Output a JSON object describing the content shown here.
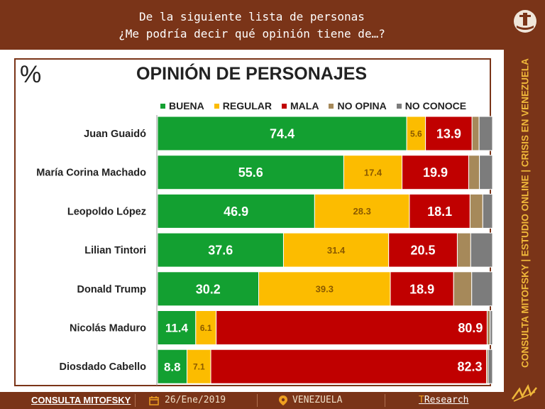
{
  "header": {
    "line1": "De la siguiente lista de personas",
    "line2": "¿Me podría decir qué opinión tiene de…?"
  },
  "sidebar": {
    "vertical_text": "CONSULTA MITOFSKY | ESTUDIO ONLINE | CRISIS EN VENEZUELA"
  },
  "footer": {
    "brand": "CONSULTA MITOFSKY",
    "date": "26/Ene/2019",
    "country": "VENEZUELA",
    "tresearch_t": "T",
    "tresearch_rest": "Research"
  },
  "colors": {
    "buena": "#13a031",
    "regular": "#fcbc00",
    "mala": "#c00000",
    "no_opina": "#a6895a",
    "no_conoce": "#7c7c7c",
    "brown": "#7a3418"
  },
  "chart_data": {
    "type": "bar",
    "orientation": "horizontal",
    "stacked": true,
    "title": "OPINIÓN DE PERSONAJES",
    "unit_label": "%",
    "xlim": [
      0,
      100
    ],
    "legend_position": "top",
    "categories": [
      "Juan Guaidó",
      "María Corina Machado",
      "Leopoldo López",
      "Lilian Tintori",
      "Donald Trump",
      "Nicolás Maduro",
      "Diosdado Cabello"
    ],
    "series": [
      {
        "name": "BUENA",
        "values": [
          74.4,
          55.6,
          46.9,
          37.6,
          30.2,
          11.4,
          8.8
        ]
      },
      {
        "name": "REGULAR",
        "values": [
          5.6,
          17.4,
          28.3,
          31.4,
          39.3,
          6.1,
          7.1
        ]
      },
      {
        "name": "MALA",
        "values": [
          13.9,
          19.9,
          18.1,
          20.5,
          18.9,
          80.9,
          82.3
        ]
      },
      {
        "name": "NO OPINA",
        "values": [
          2.1,
          3.2,
          3.8,
          4.0,
          5.4,
          0.9,
          0.5
        ]
      },
      {
        "name": "NO CONOCE",
        "values": [
          4.0,
          3.9,
          2.9,
          6.5,
          6.2,
          0.7,
          1.3
        ]
      }
    ],
    "labeled_series": [
      "BUENA",
      "REGULAR",
      "MALA"
    ]
  }
}
